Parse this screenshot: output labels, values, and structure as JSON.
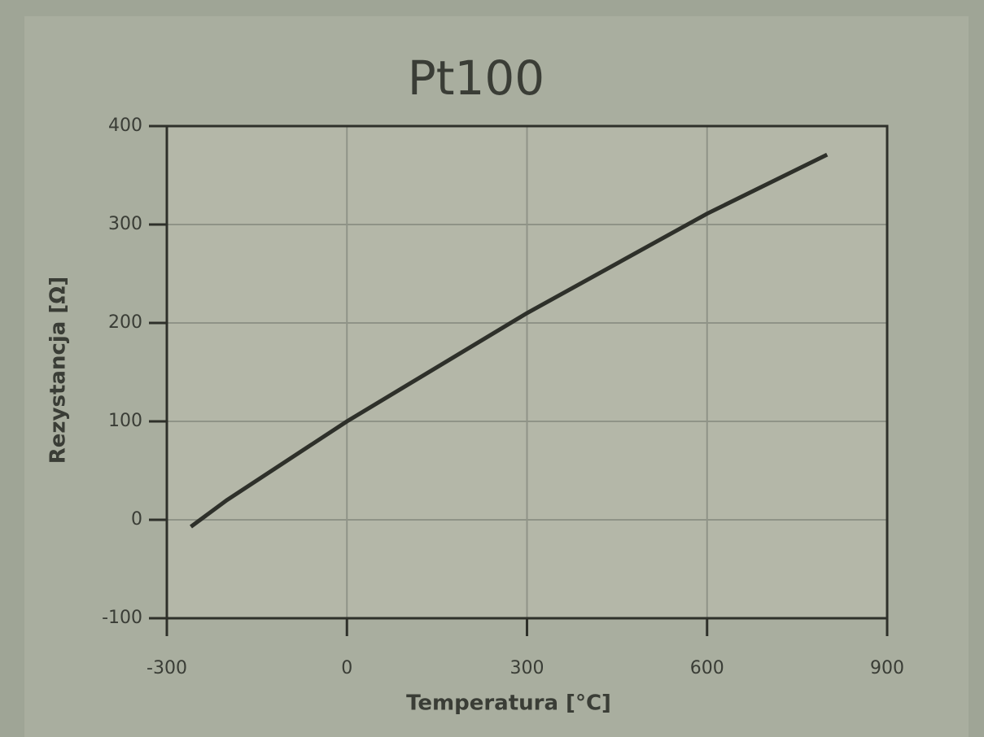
{
  "chart_data": {
    "type": "line",
    "title": "Pt100",
    "x_label": "Temperatura [°C]",
    "y_label": "Rezystancja [Ω]",
    "x": [
      -260,
      -200,
      0,
      300,
      600,
      800
    ],
    "series": [
      {
        "name": "Pt100",
        "color": "#2e302a",
        "values": [
          -7,
          20,
          100,
          210,
          311,
          371
        ]
      }
    ],
    "xlim": [
      -300,
      900
    ],
    "xticks": [
      -300,
      0,
      300,
      600,
      900
    ],
    "ylim": [
      -100,
      400
    ],
    "yticks": [
      -100,
      0,
      100,
      200,
      300,
      400
    ],
    "grid": true
  }
}
